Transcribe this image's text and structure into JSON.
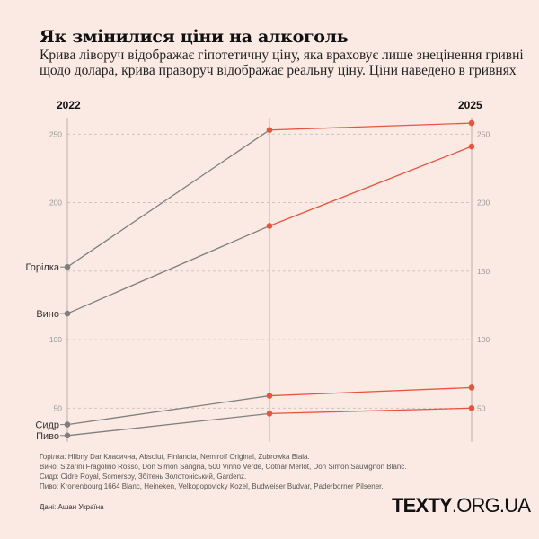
{
  "title": "Як змінилися ціни на алкоголь",
  "subtitle": "Крива ліворуч відображає гіпотетичну ціну, яка враховує лише знецінення гривні щодо долара, крива праворуч відображає реальну ціну. Ціни наведено в гривнях",
  "chart_data": {
    "type": "line",
    "subtype": "slope",
    "x_labels": [
      "2022",
      "",
      "2025"
    ],
    "ylim": [
      25,
      262
    ],
    "left_ticks": [
      "250",
      "200",
      "100",
      "50"
    ],
    "right_ticks": [
      "250",
      "200",
      "150",
      "100",
      "50"
    ],
    "grid": true,
    "colors": {
      "hypothetical": "#7f7f7f",
      "real": "#e8553e",
      "axis": "#cfc2bd",
      "grid": "#c9bdb8"
    },
    "series": [
      {
        "name": "Горілка",
        "values": [
          153,
          253,
          258
        ]
      },
      {
        "name": "Вино",
        "values": [
          119,
          183,
          241
        ]
      },
      {
        "name": "Сидр",
        "values": [
          38,
          59,
          65
        ]
      },
      {
        "name": "Пиво",
        "values": [
          30,
          46,
          50
        ]
      }
    ]
  },
  "notes": [
    "Горілка: Hlibny Dar Класична, Absolut, Finlandia, Nemiroff Original, Zubrowka Biala.",
    "Вино: Sizarini Fragolino Rosso, Don Simon Sangria, 500 Vinho Verde, Cotnar Merlot, Don Simon Sauvignon Blanc.",
    "Сидр: Cidre Royal, Somersby, Збітень Золотоніський, Gardenz.",
    "Пиво: Kronenbourg 1664 Blanc, Heineken, Velkopopovicky Kozel, Budweiser Budvar, Paderborner Pilsener."
  ],
  "source": "Дані: Ашан Україна",
  "logo": {
    "bold": "TEXTY",
    "rest": ".ORG.UA"
  }
}
